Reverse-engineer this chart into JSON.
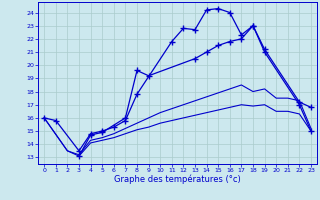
{
  "xlabel": "Graphe des températures (°c)",
  "bg_color": "#cce8ee",
  "grid_color": "#aacccc",
  "line_color": "#0000cc",
  "yticks": [
    13,
    14,
    15,
    16,
    17,
    18,
    19,
    20,
    21,
    22,
    23,
    24
  ],
  "xticks": [
    0,
    1,
    2,
    3,
    4,
    5,
    6,
    7,
    8,
    9,
    10,
    11,
    12,
    13,
    14,
    15,
    16,
    17,
    18,
    19,
    20,
    21,
    22,
    23
  ],
  "line1_x": [
    0,
    1,
    3,
    4,
    5,
    6,
    7,
    8,
    11,
    12,
    13,
    14,
    15,
    16,
    17,
    18,
    19,
    22,
    23
  ],
  "line1_y": [
    16.0,
    15.8,
    13.5,
    14.8,
    15.0,
    15.3,
    15.8,
    17.8,
    21.8,
    22.8,
    22.7,
    24.2,
    24.3,
    24.0,
    22.3,
    23.0,
    21.2,
    17.2,
    16.8
  ],
  "line2_x": [
    3,
    4,
    5,
    7,
    8,
    9,
    13,
    14,
    15,
    16,
    17,
    18,
    19,
    22,
    23
  ],
  "line2_y": [
    13.1,
    14.7,
    14.9,
    16.0,
    19.6,
    19.2,
    20.5,
    21.0,
    21.5,
    21.8,
    22.0,
    23.0,
    21.0,
    17.0,
    15.0
  ],
  "line3_x": [
    0,
    2,
    3,
    4,
    5,
    6,
    7,
    8,
    9,
    10,
    11,
    12,
    13,
    14,
    15,
    16,
    17,
    18,
    19,
    20,
    21,
    22,
    23
  ],
  "line3_y": [
    16.0,
    13.5,
    13.2,
    14.3,
    14.5,
    14.8,
    15.2,
    15.6,
    16.0,
    16.4,
    16.7,
    17.0,
    17.3,
    17.6,
    17.9,
    18.2,
    18.5,
    18.0,
    18.2,
    17.5,
    17.5,
    17.3,
    15.2
  ],
  "line4_x": [
    0,
    2,
    3,
    4,
    5,
    6,
    7,
    8,
    9,
    10,
    11,
    12,
    13,
    14,
    15,
    16,
    17,
    18,
    19,
    20,
    21,
    22,
    23
  ],
  "line4_y": [
    16.0,
    13.5,
    13.1,
    14.1,
    14.3,
    14.5,
    14.8,
    15.1,
    15.3,
    15.6,
    15.8,
    16.0,
    16.2,
    16.4,
    16.6,
    16.8,
    17.0,
    16.9,
    17.0,
    16.5,
    16.5,
    16.3,
    15.0
  ]
}
